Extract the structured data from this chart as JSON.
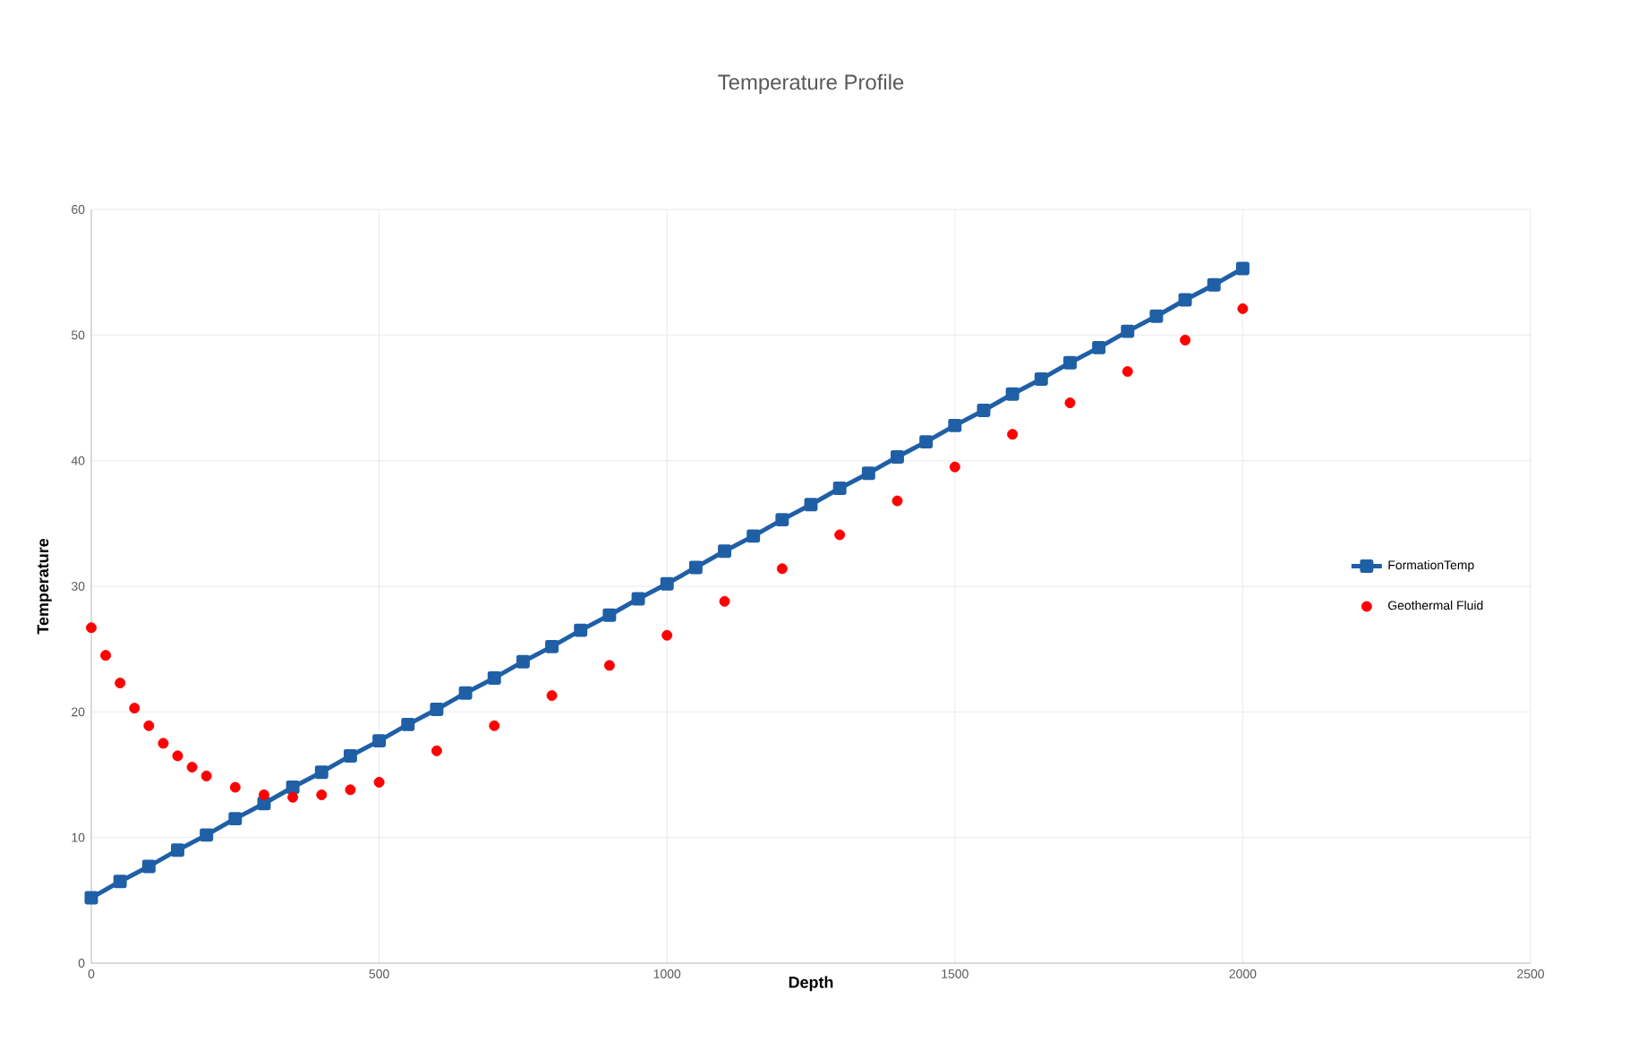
{
  "chart_data": {
    "type": "line",
    "title": "Temperature Profile",
    "xlabel": "Depth",
    "ylabel": "Temperature",
    "xlim": [
      0,
      2500
    ],
    "xticks": [
      0,
      500,
      1000,
      1500,
      2000,
      2500
    ],
    "ylim": [
      0,
      60
    ],
    "yticks": [
      0,
      10,
      20,
      30,
      40,
      50,
      60
    ],
    "grid": true,
    "legend": "right",
    "series": [
      {
        "name": "FormationTemp",
        "marker": "square",
        "color": "#1f5fa6",
        "x": [
          0,
          50,
          100,
          150,
          200,
          250,
          300,
          350,
          400,
          450,
          500,
          550,
          600,
          650,
          700,
          750,
          800,
          850,
          900,
          950,
          1000,
          1050,
          1100,
          1150,
          1200,
          1250,
          1300,
          1350,
          1400,
          1450,
          1500,
          1550,
          1600,
          1650,
          1700,
          1750,
          1800,
          1850,
          1900,
          1950,
          2000
        ],
        "values": [
          5.2,
          6.5,
          7.7,
          9.0,
          10.2,
          11.5,
          12.7,
          14.0,
          15.2,
          16.5,
          17.7,
          19.0,
          20.2,
          21.5,
          22.7,
          24.0,
          25.2,
          26.5,
          27.7,
          29.0,
          30.2,
          31.5,
          32.8,
          34.0,
          35.3,
          36.5,
          37.8,
          39.0,
          40.3,
          41.5,
          42.8,
          44.0,
          45.3,
          46.5,
          47.8,
          49.0,
          50.3,
          51.5,
          52.8,
          54.0,
          55.3
        ]
      },
      {
        "name": "Geothermal Fluid",
        "type": "scatter",
        "marker": "circle",
        "color": "#ff0000",
        "x": [
          0,
          25,
          50,
          75,
          100,
          125,
          150,
          175,
          200,
          250,
          300,
          350,
          400,
          450,
          500,
          600,
          700,
          800,
          900,
          1000,
          1100,
          1200,
          1300,
          1400,
          1500,
          1600,
          1700,
          1800,
          1900,
          2000
        ],
        "values": [
          26.7,
          24.5,
          22.3,
          20.3,
          18.9,
          17.5,
          16.5,
          15.6,
          14.9,
          14.0,
          13.4,
          13.2,
          13.4,
          13.8,
          14.4,
          16.9,
          18.9,
          21.3,
          23.7,
          26.1,
          28.8,
          31.4,
          34.1,
          36.8,
          39.5,
          42.1,
          44.6,
          47.1,
          49.6,
          52.1
        ]
      }
    ]
  }
}
